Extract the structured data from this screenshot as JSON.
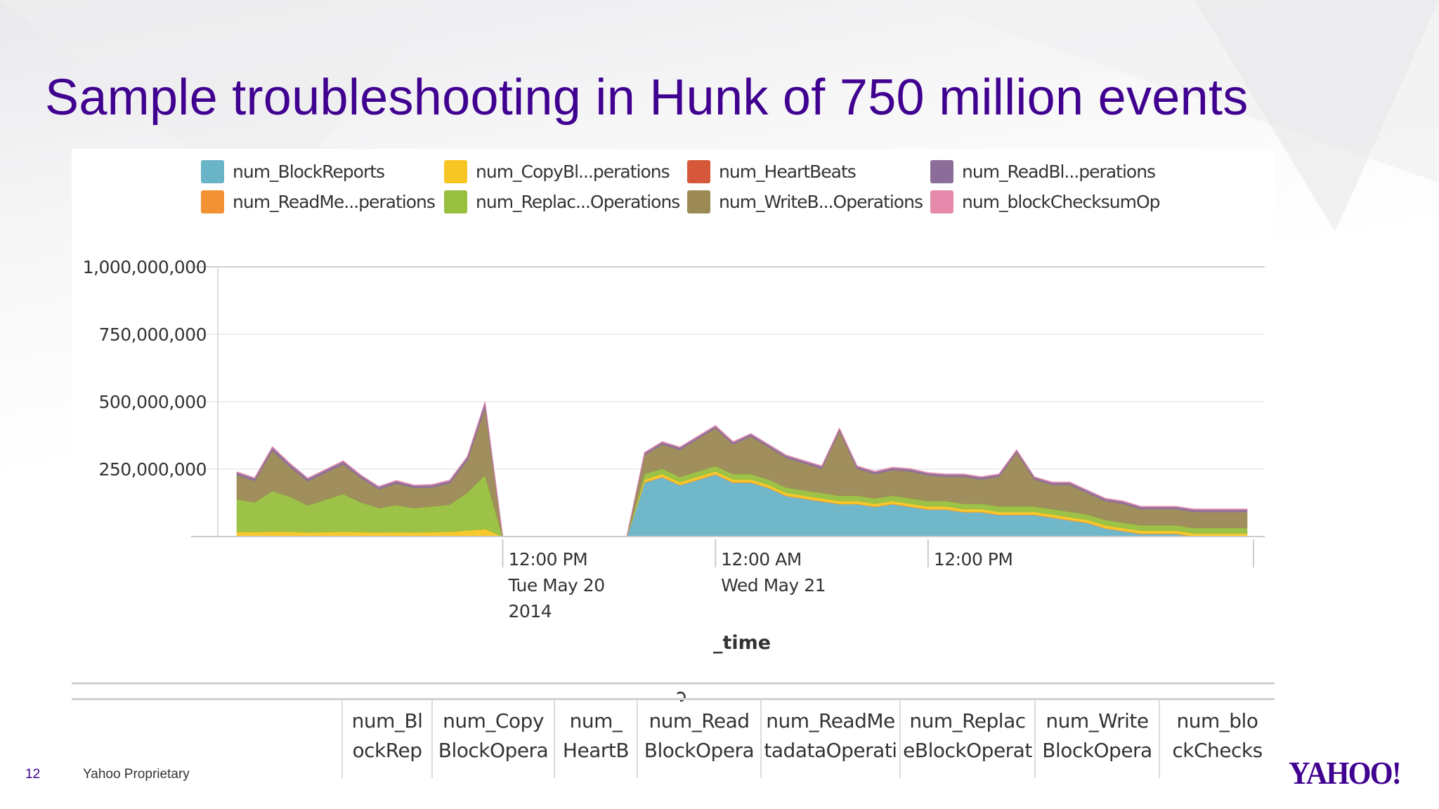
{
  "slide": {
    "title": "Sample troubleshooting in Hunk of 750 million events",
    "page_number": "12",
    "footer_text": "Yahoo Proprietary",
    "logo_text": "YAHOO!",
    "title_color": "#400090"
  },
  "chart_data": {
    "type": "area",
    "stacked": true,
    "title": "",
    "xlabel": "_time",
    "ylabel": "",
    "ylim": [
      0,
      1000000000
    ],
    "yticks": [
      "1,000,000,000",
      "750,000,000",
      "500,000,000",
      "250,000,000"
    ],
    "ytick_values": [
      1000000000,
      750000000,
      500000000,
      250000000
    ],
    "grid": true,
    "legend_position": "top",
    "x_domain": [
      "2014-05-19T20:00",
      "2014-05-22T07:00"
    ],
    "x_ticks": [
      {
        "t": "2014-05-20T12:00",
        "lines": [
          "12:00 PM",
          "Tue May 20",
          "2014"
        ]
      },
      {
        "t": "2014-05-21T00:00",
        "lines": [
          "12:00 AM",
          "Wed May 21"
        ]
      },
      {
        "t": "2014-05-21T12:00",
        "lines": [
          "12:00 PM"
        ]
      }
    ],
    "x": [
      "2014-05-19T21:00",
      "2014-05-19T22:00",
      "2014-05-19T23:00",
      "2014-05-20T00:00",
      "2014-05-20T01:00",
      "2014-05-20T02:00",
      "2014-05-20T03:00",
      "2014-05-20T04:00",
      "2014-05-20T05:00",
      "2014-05-20T06:00",
      "2014-05-20T07:00",
      "2014-05-20T08:00",
      "2014-05-20T09:00",
      "2014-05-20T10:00",
      "2014-05-20T11:00",
      "2014-05-20T12:00",
      "2014-05-20T13:00",
      "2014-05-20T14:00",
      "2014-05-20T15:00",
      "2014-05-20T16:00",
      "2014-05-20T17:00",
      "2014-05-20T18:00",
      "2014-05-20T19:00",
      "2014-05-20T20:00",
      "2014-05-20T21:00",
      "2014-05-20T22:00",
      "2014-05-20T23:00",
      "2014-05-21T00:00",
      "2014-05-21T01:00",
      "2014-05-21T02:00",
      "2014-05-21T03:00",
      "2014-05-21T04:00",
      "2014-05-21T05:00",
      "2014-05-21T06:00",
      "2014-05-21T07:00",
      "2014-05-21T08:00",
      "2014-05-21T09:00",
      "2014-05-21T10:00",
      "2014-05-21T11:00",
      "2014-05-21T12:00",
      "2014-05-21T13:00",
      "2014-05-21T14:00",
      "2014-05-21T15:00",
      "2014-05-21T16:00",
      "2014-05-21T17:00",
      "2014-05-21T18:00",
      "2014-05-21T19:00",
      "2014-05-21T20:00",
      "2014-05-21T21:00",
      "2014-05-21T22:00",
      "2014-05-21T23:00",
      "2014-05-22T00:00",
      "2014-05-22T01:00",
      "2014-05-22T02:00",
      "2014-05-22T03:00",
      "2014-05-22T04:00",
      "2014-05-22T05:00",
      "2014-05-22T06:00"
    ],
    "series": [
      {
        "name": "num_BlockReports",
        "color": "#6ab4c8",
        "values": [
          0,
          0,
          0,
          0,
          0,
          0,
          0,
          0,
          0,
          0,
          0,
          0,
          0,
          0,
          0,
          0,
          0,
          0,
          0,
          0,
          0,
          0,
          0,
          200000000,
          220000000,
          190000000,
          210000000,
          230000000,
          200000000,
          200000000,
          180000000,
          150000000,
          140000000,
          130000000,
          120000000,
          120000000,
          110000000,
          120000000,
          110000000,
          100000000,
          100000000,
          90000000,
          90000000,
          80000000,
          80000000,
          80000000,
          70000000,
          60000000,
          50000000,
          30000000,
          20000000,
          10000000,
          10000000,
          10000000,
          0,
          0,
          0,
          0
        ]
      },
      {
        "name": "num_ReadMe...perations",
        "color": "#f39234",
        "values": [
          3000000,
          3000000,
          3000000,
          3000000,
          3000000,
          3000000,
          3000000,
          3000000,
          3000000,
          3000000,
          3000000,
          3000000,
          3000000,
          3000000,
          3000000,
          0,
          0,
          0,
          0,
          0,
          0,
          0,
          0,
          2000000,
          2000000,
          2000000,
          2000000,
          2000000,
          2000000,
          2000000,
          2000000,
          2000000,
          2000000,
          2000000,
          2000000,
          2000000,
          2000000,
          2000000,
          2000000,
          2000000,
          2000000,
          2000000,
          2000000,
          2000000,
          2000000,
          2000000,
          2000000,
          2000000,
          2000000,
          2000000,
          2000000,
          2000000,
          2000000,
          2000000,
          2000000,
          2000000,
          2000000,
          2000000
        ]
      },
      {
        "name": "num_CopyBl...perations",
        "color": "#f8c623",
        "values": [
          15000000,
          14000000,
          16000000,
          15000000,
          13000000,
          14000000,
          15000000,
          14000000,
          13000000,
          14000000,
          13000000,
          14000000,
          15000000,
          20000000,
          25000000,
          0,
          0,
          0,
          0,
          0,
          0,
          0,
          0,
          10000000,
          10000000,
          10000000,
          10000000,
          10000000,
          10000000,
          10000000,
          10000000,
          10000000,
          10000000,
          10000000,
          10000000,
          10000000,
          10000000,
          10000000,
          10000000,
          10000000,
          10000000,
          10000000,
          10000000,
          10000000,
          10000000,
          10000000,
          10000000,
          10000000,
          10000000,
          10000000,
          10000000,
          10000000,
          10000000,
          10000000,
          10000000,
          10000000,
          10000000,
          10000000
        ]
      },
      {
        "name": "num_Replac...Operations",
        "color": "#97c03e",
        "values": [
          120000000,
          110000000,
          150000000,
          130000000,
          100000000,
          120000000,
          140000000,
          110000000,
          90000000,
          100000000,
          90000000,
          95000000,
          100000000,
          140000000,
          200000000,
          0,
          0,
          0,
          0,
          0,
          0,
          0,
          0,
          20000000,
          20000000,
          20000000,
          20000000,
          20000000,
          20000000,
          20000000,
          20000000,
          20000000,
          20000000,
          20000000,
          20000000,
          20000000,
          20000000,
          20000000,
          20000000,
          20000000,
          20000000,
          20000000,
          20000000,
          20000000,
          20000000,
          20000000,
          20000000,
          20000000,
          20000000,
          20000000,
          20000000,
          20000000,
          20000000,
          20000000,
          20000000,
          20000000,
          20000000,
          20000000
        ]
      },
      {
        "name": "num_HeartBeats",
        "color": "#d6573a",
        "values": [
          0,
          0,
          0,
          0,
          0,
          0,
          0,
          0,
          0,
          0,
          0,
          0,
          0,
          0,
          0,
          0,
          0,
          0,
          0,
          0,
          0,
          0,
          0,
          0,
          0,
          0,
          0,
          0,
          0,
          0,
          0,
          0,
          0,
          0,
          0,
          0,
          0,
          0,
          0,
          0,
          0,
          0,
          0,
          0,
          0,
          0,
          0,
          0,
          0,
          0,
          0,
          0,
          0,
          0,
          0,
          0,
          0,
          0
        ]
      },
      {
        "name": "num_WriteB...Operations",
        "color": "#9b8a55",
        "values": [
          90000000,
          80000000,
          150000000,
          110000000,
          90000000,
          100000000,
          110000000,
          90000000,
          70000000,
          80000000,
          75000000,
          70000000,
          80000000,
          120000000,
          250000000,
          0,
          0,
          0,
          0,
          0,
          0,
          0,
          0,
          70000000,
          90000000,
          100000000,
          120000000,
          140000000,
          110000000,
          140000000,
          120000000,
          110000000,
          100000000,
          90000000,
          240000000,
          100000000,
          90000000,
          95000000,
          100000000,
          95000000,
          90000000,
          100000000,
          90000000,
          110000000,
          200000000,
          100000000,
          90000000,
          100000000,
          80000000,
          70000000,
          70000000,
          60000000,
          60000000,
          60000000,
          60000000,
          60000000,
          60000000,
          60000000
        ]
      },
      {
        "name": "num_ReadBl...perations",
        "color": "#8c6d99",
        "values": [
          10000000,
          9000000,
          12000000,
          11000000,
          9000000,
          10000000,
          11000000,
          9000000,
          8000000,
          9000000,
          8000000,
          9000000,
          9000000,
          12000000,
          20000000,
          0,
          0,
          0,
          0,
          0,
          0,
          0,
          0,
          8000000,
          8000000,
          8000000,
          8000000,
          8000000,
          8000000,
          8000000,
          8000000,
          8000000,
          8000000,
          8000000,
          8000000,
          8000000,
          8000000,
          8000000,
          8000000,
          8000000,
          8000000,
          8000000,
          8000000,
          8000000,
          8000000,
          8000000,
          8000000,
          8000000,
          8000000,
          8000000,
          8000000,
          8000000,
          8000000,
          8000000,
          8000000,
          8000000,
          8000000,
          8000000
        ]
      },
      {
        "name": "num_blockChecksumOp",
        "color": "#e58aab",
        "values": [
          2000000,
          2000000,
          2000000,
          2000000,
          2000000,
          2000000,
          2000000,
          2000000,
          2000000,
          2000000,
          2000000,
          2000000,
          2000000,
          2000000,
          2000000,
          0,
          0,
          0,
          0,
          0,
          0,
          0,
          0,
          2000000,
          2000000,
          2000000,
          2000000,
          2000000,
          2000000,
          2000000,
          2000000,
          2000000,
          2000000,
          2000000,
          2000000,
          2000000,
          2000000,
          2000000,
          2000000,
          2000000,
          2000000,
          2000000,
          2000000,
          2000000,
          2000000,
          2000000,
          2000000,
          2000000,
          2000000,
          2000000,
          2000000,
          2000000,
          2000000,
          2000000,
          2000000,
          2000000,
          2000000,
          2000000
        ]
      }
    ],
    "legend": [
      {
        "label": "num_BlockReports",
        "color": "#6ab4c8"
      },
      {
        "label": "num_CopyBl...perations",
        "color": "#f8c623"
      },
      {
        "label": "num_HeartBeats",
        "color": "#d6573a"
      },
      {
        "label": "num_ReadBl...perations",
        "color": "#8c6d99"
      },
      {
        "label": "num_ReadMe...perations",
        "color": "#f39234"
      },
      {
        "label": "num_Replac...Operations",
        "color": "#97c03e"
      },
      {
        "label": "num_WriteB...Operations",
        "color": "#9b8a55"
      },
      {
        "label": "num_blockChecksumOp",
        "color": "#e58aab"
      }
    ]
  },
  "table": {
    "headers": [
      {
        "label": "num_Bl\nockRep"
      },
      {
        "label": "num_Copy\nBlockOpera"
      },
      {
        "label": "num_\nHeartB"
      },
      {
        "label": "num_Read\nBlockOpera"
      },
      {
        "label": "num_ReadMe\ntadataOperati"
      },
      {
        "label": "num_Replac\neBlockOperat"
      },
      {
        "label": "num_Write\nBlockOpera"
      },
      {
        "label": "num_blo\nckChecks"
      }
    ]
  }
}
